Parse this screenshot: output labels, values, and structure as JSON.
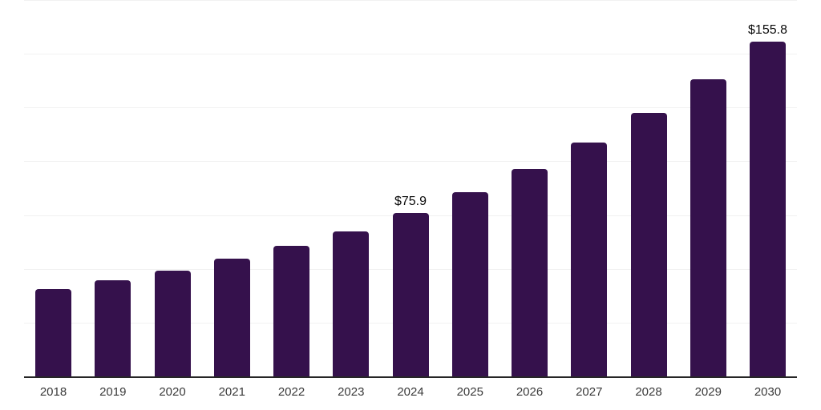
{
  "chart_data": {
    "type": "bar",
    "title": "",
    "xlabel": "",
    "ylabel": "",
    "categories": [
      "2018",
      "2019",
      "2020",
      "2021",
      "2022",
      "2023",
      "2024",
      "2025",
      "2026",
      "2027",
      "2028",
      "2029",
      "2030"
    ],
    "values": [
      40.7,
      44.6,
      49.2,
      54.9,
      60.6,
      67.5,
      75.9,
      85.5,
      96.4,
      108.6,
      122.4,
      138.1,
      155.8
    ],
    "data_labels": [
      "",
      "",
      "",
      "",
      "",
      "",
      "$75.9",
      "",
      "",
      "",
      "",
      "",
      "$155.8"
    ],
    "unit_prefix": "$",
    "ylim": [
      0,
      175
    ],
    "gridline_step": 25,
    "grid": true,
    "legend": "none"
  },
  "style": {
    "bar_color": "#35114C",
    "grid_color": "#F1F1F1",
    "axis_color": "#262626",
    "tick_label_color": "#3A3A3A",
    "data_label_color": "#0A0A0A",
    "background": "#FFFFFF"
  }
}
